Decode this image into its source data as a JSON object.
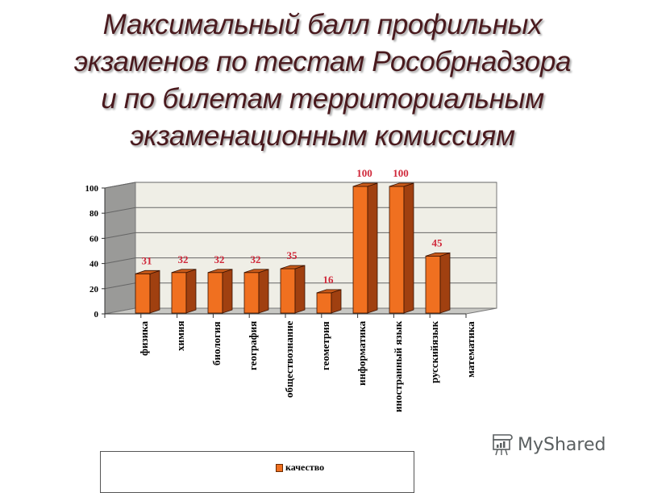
{
  "title": {
    "lines": [
      "Максимальный балл профильных",
      "экзаменов по тестам Рособрнадзора",
      "и по билетам территориальным",
      "экзаменационным комиссиям"
    ]
  },
  "chart_data": {
    "type": "bar",
    "title": "Максимальный балл профильных экзаменов по тестам Рособрнадзора и по билетам территориальным экзаменационным комиссиям",
    "categories": [
      "физика",
      "химия",
      "биология",
      "география",
      "обществознание",
      "геометрия",
      "информатика",
      "иностранный язык",
      "русскийязык",
      "математика"
    ],
    "series": [
      {
        "name": "качество",
        "values": [
          31,
          32,
          32,
          32,
          35,
          16,
          100,
          100,
          45,
          null
        ],
        "color": "#f07020"
      }
    ],
    "data_labels": [
      "31",
      "32",
      "32",
      "32",
      "35",
      "16",
      "100",
      "100",
      "45",
      ""
    ],
    "yticks": [
      "0",
      "20",
      "40",
      "60",
      "80",
      "100"
    ],
    "ylim": [
      0,
      100
    ],
    "xlabel": "",
    "ylabel": "",
    "grid": true,
    "style": "3d-column",
    "legend_position": "bottom"
  },
  "legend": {
    "label": "качество"
  },
  "watermark": {
    "text": "MyShared"
  },
  "colors": {
    "bar_front": "#f07020",
    "bar_side": "#a04010",
    "bar_top": "#c85a1a",
    "label": "#d0283a",
    "title": "#4a1a1e",
    "wall": "#efeee6",
    "side_wall": "#9a9a98"
  }
}
